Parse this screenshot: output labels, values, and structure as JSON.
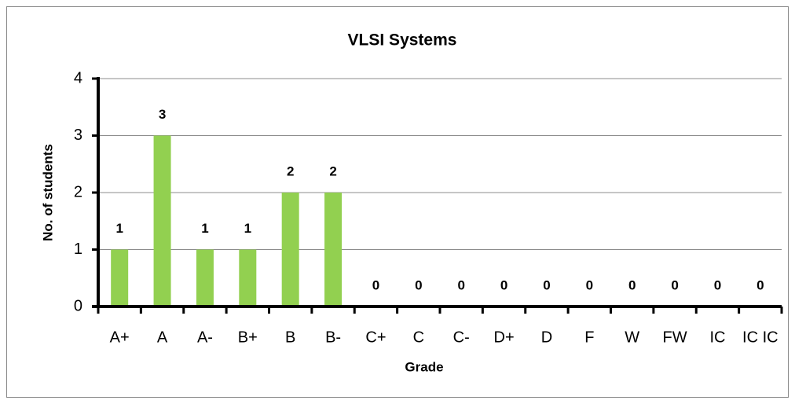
{
  "chart_data": {
    "type": "bar",
    "title": "VLSI Systems",
    "x_label": "Grade",
    "y_label": "No. of students",
    "categories": [
      "A+",
      "A",
      "A-",
      "B+",
      "B",
      "B-",
      "C+",
      "C",
      "C-",
      "D+",
      "D",
      "F",
      "W",
      "FW",
      "IC",
      "IC IC"
    ],
    "values": [
      1,
      3,
      1,
      1,
      2,
      2,
      0,
      0,
      0,
      0,
      0,
      0,
      0,
      0,
      0,
      0
    ],
    "color": "#92d050",
    "ylim": [
      0,
      4
    ],
    "yticks": [
      0,
      1,
      2,
      3,
      4
    ],
    "grid": true
  }
}
